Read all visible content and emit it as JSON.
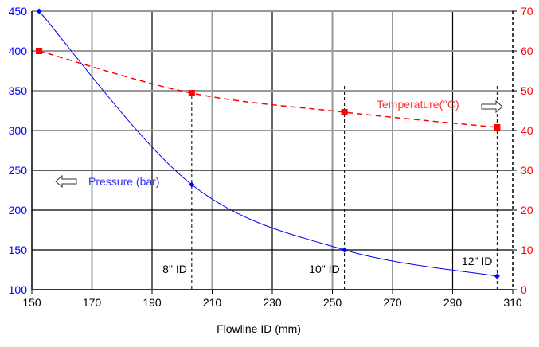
{
  "chart_data": {
    "type": "line",
    "title": "",
    "xlabel": "Flowline ID (mm)",
    "ylabel": "",
    "y2label": "",
    "xlim": [
      150,
      310
    ],
    "ylim": [
      100,
      450
    ],
    "y2lim": [
      0,
      70
    ],
    "xticks": [
      150,
      170,
      190,
      210,
      230,
      250,
      270,
      290,
      310
    ],
    "yticks": [
      100,
      150,
      200,
      250,
      300,
      350,
      400,
      450
    ],
    "y2ticks": [
      0,
      10,
      20,
      30,
      40,
      50,
      60,
      70
    ],
    "grid": true,
    "series": [
      {
        "name": "Pressure (bar)",
        "axis": "left",
        "color": "#0000ff",
        "style": "solid",
        "marker": "diamond",
        "x": [
          152.4,
          203.2,
          254,
          304.8
        ],
        "y": [
          450,
          232,
          150,
          117
        ]
      },
      {
        "name": "Temperature(°C)",
        "axis": "right",
        "color": "#ff0000",
        "style": "dashed",
        "marker": "square",
        "x": [
          152.4,
          203.2,
          254,
          304.8
        ],
        "y": [
          60,
          49.4,
          44.6,
          40.8
        ]
      }
    ],
    "annotations": [
      {
        "text": "8\" ID",
        "x": 203.2
      },
      {
        "text": "10\" ID",
        "x": 254
      },
      {
        "text": "12\" ID",
        "x": 304.8
      }
    ],
    "legend_labels": {
      "pressure": "Pressure (bar)",
      "temperature": "Temperature(°C)"
    },
    "colors": {
      "left_axis": "#0000ff",
      "right_axis": "#ff0000",
      "grid_gray": "#999999",
      "grid_black": "#000000"
    }
  }
}
